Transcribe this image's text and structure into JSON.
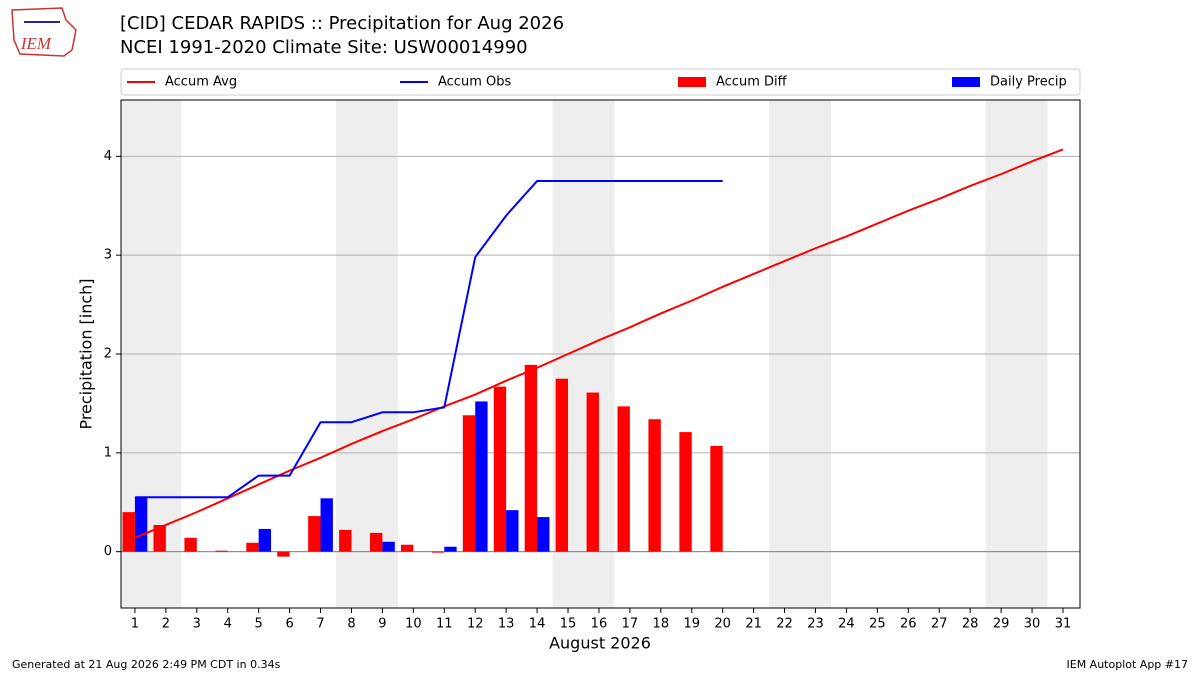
{
  "chart_data": {
    "type": "bar",
    "title": "[CID] CEDAR RAPIDS :: Precipitation for Aug 2026",
    "subtitle": "NCEI 1991-2020 Climate Site: USW00014990",
    "logo_text": "IEM",
    "x_label": "August 2026",
    "y_label": "Precipitation [inch]",
    "footer_left": "Generated at 21 Aug 2026 2:49 PM CDT in 0.34s",
    "footer_right": "IEM Autoplot App #17",
    "x": [
      1,
      2,
      3,
      4,
      5,
      6,
      7,
      8,
      9,
      10,
      11,
      12,
      13,
      14,
      15,
      16,
      17,
      18,
      19,
      20,
      21,
      22,
      23,
      24,
      25,
      26,
      27,
      28,
      29,
      30,
      31
    ],
    "xlim": [
      0.55,
      31.55
    ],
    "xticks": [
      1,
      2,
      3,
      4,
      5,
      6,
      7,
      8,
      9,
      10,
      11,
      12,
      13,
      14,
      15,
      16,
      17,
      18,
      19,
      20,
      21,
      22,
      23,
      24,
      25,
      26,
      27,
      28,
      29,
      30,
      31
    ],
    "ylim": [
      -0.57,
      4.57
    ],
    "yticks": [
      0,
      1,
      2,
      3,
      4
    ],
    "grid": true,
    "legend": "top",
    "series": [
      {
        "name": "Accum Avg",
        "kind": "line",
        "color": "#ff0000",
        "values": [
          0.14,
          0.27,
          0.4,
          0.54,
          0.68,
          0.82,
          0.95,
          1.09,
          1.22,
          1.34,
          1.47,
          1.59,
          1.73,
          1.86,
          2.0,
          2.14,
          2.27,
          2.41,
          2.54,
          2.68,
          2.81,
          2.94,
          3.07,
          3.19,
          3.32,
          3.45,
          3.57,
          3.7,
          3.82,
          3.95,
          4.07
        ]
      },
      {
        "name": "Accum Obs",
        "kind": "line",
        "color": "#0000ff",
        "values": [
          0.55,
          0.55,
          0.55,
          0.55,
          0.77,
          0.77,
          1.31,
          1.31,
          1.41,
          1.41,
          1.46,
          2.98,
          3.4,
          3.75,
          3.75,
          3.75,
          3.75,
          3.75,
          3.75,
          3.75,
          null,
          null,
          null,
          null,
          null,
          null,
          null,
          null,
          null,
          null,
          null
        ]
      },
      {
        "name": "Accum Diff",
        "kind": "bar",
        "color": "#ff0000",
        "values": [
          0.4,
          0.27,
          0.14,
          0.01,
          0.09,
          -0.05,
          0.36,
          0.22,
          0.19,
          0.07,
          -0.01,
          1.38,
          1.67,
          1.89,
          1.75,
          1.61,
          1.47,
          1.34,
          1.21,
          1.07,
          null,
          null,
          null,
          null,
          null,
          null,
          null,
          null,
          null,
          null,
          null
        ]
      },
      {
        "name": "Daily Precip",
        "kind": "bar",
        "color": "#0000ff",
        "values": [
          0.55,
          0,
          0,
          0,
          0.23,
          0,
          0.54,
          0,
          0.1,
          0,
          0.05,
          1.52,
          0.42,
          0.35,
          0,
          0,
          0,
          0,
          0,
          0,
          null,
          null,
          null,
          null,
          null,
          null,
          null,
          null,
          null,
          null,
          null
        ]
      }
    ]
  }
}
